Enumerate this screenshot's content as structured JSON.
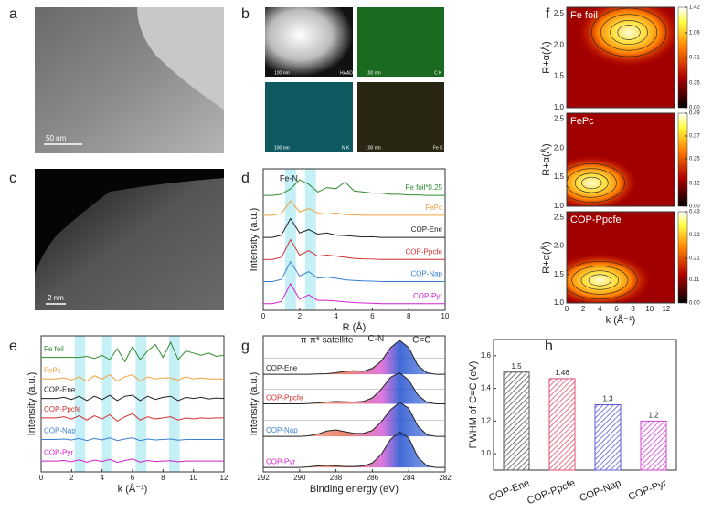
{
  "images": [
    {
      "panel": "a",
      "scale_bar": "50 nm"
    },
    {
      "panel": "b",
      "tiles": [
        "HAADF",
        "C K",
        "N K",
        "Fe K"
      ],
      "scale_bar": "100 nm"
    },
    {
      "panel": "c",
      "scale_bar": "2 nm"
    }
  ],
  "chart_data": [
    {
      "type": "line",
      "panel": "d",
      "xlabel": "R (Å)",
      "ylabel": "Intensity (a.u.)",
      "annotation": "Fe-N",
      "x": [
        0,
        0.5,
        1,
        1.5,
        2,
        2.5,
        3,
        3.5,
        4,
        4.5,
        5,
        5.5,
        6,
        6.5,
        7,
        7.5,
        8,
        8.5,
        9,
        9.5,
        10
      ],
      "xlim": [
        0,
        10
      ],
      "xticks": [
        0,
        2,
        4,
        6,
        8,
        10
      ],
      "ylim": [
        0,
        6.4
      ],
      "series": [
        {
          "name": "Fe foil*0.25",
          "color": "#2e8b2e",
          "values": [
            5.2,
            5.2,
            5.25,
            5.5,
            5.9,
            5.7,
            5.35,
            5.55,
            5.5,
            5.8,
            5.4,
            5.35,
            5.3,
            5.3,
            5.25,
            5.25,
            5.22,
            5.22,
            5.2,
            5.2,
            5.2
          ]
        },
        {
          "name": "FePc",
          "color": "#f0a040",
          "values": [
            4.3,
            4.3,
            4.38,
            4.95,
            4.45,
            4.6,
            4.4,
            4.35,
            4.4,
            4.33,
            4.32,
            4.3,
            4.3,
            4.3,
            4.3,
            4.3,
            4.3,
            4.3,
            4.3,
            4.3,
            4.3
          ]
        },
        {
          "name": "COP-Ene",
          "color": "#222222",
          "values": [
            3.3,
            3.3,
            3.4,
            4.15,
            3.5,
            3.65,
            3.45,
            3.5,
            3.4,
            3.38,
            3.35,
            3.32,
            3.33,
            3.3,
            3.3,
            3.3,
            3.3,
            3.3,
            3.3,
            3.3,
            3.3
          ]
        },
        {
          "name": "COP-Ppcfe",
          "color": "#d03030",
          "values": [
            2.3,
            2.3,
            2.4,
            3.2,
            2.5,
            2.7,
            2.45,
            2.5,
            2.45,
            2.4,
            2.35,
            2.33,
            2.32,
            2.3,
            2.3,
            2.3,
            2.3,
            2.3,
            2.3,
            2.3,
            2.3
          ]
        },
        {
          "name": "COP-Nap",
          "color": "#3a7fd0",
          "values": [
            1.3,
            1.3,
            1.4,
            2.2,
            1.55,
            1.75,
            1.45,
            1.5,
            1.45,
            1.38,
            1.35,
            1.33,
            1.32,
            1.3,
            1.3,
            1.3,
            1.3,
            1.3,
            1.3,
            1.3,
            1.3
          ]
        },
        {
          "name": "COP-Pyr",
          "color": "#d020d0",
          "values": [
            0.3,
            0.3,
            0.4,
            1.2,
            0.5,
            0.7,
            0.45,
            0.45,
            0.42,
            0.38,
            0.35,
            0.33,
            0.32,
            0.3,
            0.3,
            0.3,
            0.3,
            0.3,
            0.3,
            0.3,
            0.3
          ]
        }
      ]
    },
    {
      "type": "line",
      "panel": "e",
      "xlabel": "k (Å⁻¹)",
      "ylabel": "Intensity (a.u.)",
      "x": [
        0,
        0.5,
        1,
        1.5,
        2,
        2.5,
        3,
        3.5,
        4,
        4.5,
        5,
        5.5,
        6,
        6.5,
        7,
        7.5,
        8,
        8.5,
        9,
        9.5,
        10,
        10.5,
        11,
        11.5,
        12
      ],
      "xlim": [
        0,
        12
      ],
      "xticks": [
        0,
        2,
        4,
        6,
        8,
        10,
        12
      ],
      "ylim": [
        0,
        6.3
      ],
      "series": [
        {
          "name": "Fe foil",
          "color": "#2e8b2e",
          "values": [
            5.3,
            5.3,
            5.3,
            5.3,
            5.3,
            5.3,
            5.35,
            5.25,
            5.4,
            5.2,
            5.7,
            5.1,
            5.8,
            5.2,
            5.6,
            5.9,
            5.3,
            6.0,
            5.2,
            5.6,
            5.5,
            5.4,
            5.5,
            5.35,
            5.4
          ]
        },
        {
          "name": "FePc",
          "color": "#f0a040",
          "values": [
            4.3,
            4.3,
            4.3,
            4.35,
            4.25,
            4.4,
            4.2,
            4.45,
            4.3,
            4.5,
            4.2,
            4.4,
            4.5,
            4.2,
            4.4,
            4.3,
            4.35,
            4.35,
            4.25,
            4.4,
            4.3,
            4.35,
            4.3,
            4.3,
            4.3
          ]
        },
        {
          "name": "COP-Ene",
          "color": "#222222",
          "values": [
            3.4,
            3.4,
            3.4,
            3.45,
            3.35,
            3.5,
            3.3,
            3.5,
            3.35,
            3.55,
            3.3,
            3.5,
            3.55,
            3.3,
            3.5,
            3.35,
            3.45,
            3.5,
            3.3,
            3.45,
            3.4,
            3.45,
            3.38,
            3.42,
            3.4
          ]
        },
        {
          "name": "COP-Ppcfe",
          "color": "#d03030",
          "values": [
            2.5,
            2.5,
            2.5,
            2.55,
            2.45,
            2.6,
            2.4,
            2.6,
            2.45,
            2.65,
            2.35,
            2.55,
            2.7,
            2.4,
            2.55,
            2.45,
            2.5,
            2.55,
            2.4,
            2.5,
            2.45,
            2.5,
            2.48,
            2.5,
            2.5
          ]
        },
        {
          "name": "COP-Nap",
          "color": "#3a7fd0",
          "values": [
            1.5,
            1.5,
            1.5,
            1.52,
            1.48,
            1.55,
            1.45,
            1.55,
            1.48,
            1.58,
            1.45,
            1.52,
            1.58,
            1.45,
            1.52,
            1.48,
            1.5,
            1.52,
            1.47,
            1.5,
            1.5,
            1.5,
            1.5,
            1.5,
            1.5
          ]
        },
        {
          "name": "COP-Pyr",
          "color": "#d020d0",
          "values": [
            0.5,
            0.5,
            0.5,
            0.53,
            0.47,
            0.56,
            0.45,
            0.55,
            0.48,
            0.58,
            0.44,
            0.53,
            0.6,
            0.45,
            0.53,
            0.48,
            0.5,
            0.52,
            0.47,
            0.5,
            0.5,
            0.5,
            0.5,
            0.5,
            0.5
          ]
        }
      ]
    },
    {
      "type": "line",
      "panel": "g",
      "xlabel": "Binding energy (eV)",
      "ylabel": "Intensity (a.u.)",
      "annotations": [
        "π-π* satellite",
        "C-N",
        "C=C"
      ],
      "x": [
        292,
        291.5,
        291,
        290.5,
        290,
        289.5,
        289,
        288.5,
        288,
        287.5,
        287,
        286.5,
        286,
        285.5,
        285,
        284.5,
        284,
        283.5,
        283,
        282.5,
        282
      ],
      "xlim": [
        292,
        282
      ],
      "xticks": [
        292,
        290,
        288,
        286,
        284,
        282
      ],
      "ylim": [
        0,
        4.6
      ],
      "series": [
        {
          "name": "COP-Ene",
          "color": "#222222",
          "values": [
            3.3,
            3.3,
            3.3,
            3.3,
            3.3,
            3.3,
            3.31,
            3.32,
            3.35,
            3.4,
            3.42,
            3.4,
            3.5,
            3.75,
            4.2,
            4.45,
            4.2,
            3.6,
            3.35,
            3.3,
            3.3
          ]
        },
        {
          "name": "COP-Ppcfe",
          "color": "#222222",
          "values": [
            2.3,
            2.3,
            2.3,
            2.3,
            2.3,
            2.31,
            2.33,
            2.36,
            2.38,
            2.37,
            2.36,
            2.38,
            2.5,
            2.8,
            3.2,
            3.35,
            3.1,
            2.6,
            2.35,
            2.3,
            2.3
          ]
        },
        {
          "name": "COP-Nap",
          "color": "#222222",
          "values": [
            1.2,
            1.2,
            1.2,
            1.2,
            1.2,
            1.22,
            1.28,
            1.38,
            1.42,
            1.36,
            1.3,
            1.3,
            1.4,
            1.7,
            2.1,
            2.35,
            2.15,
            1.55,
            1.25,
            1.2,
            1.2
          ]
        },
        {
          "name": "COP-Pyr",
          "color": "#222222",
          "values": [
            0.15,
            0.15,
            0.15,
            0.15,
            0.15,
            0.17,
            0.2,
            0.22,
            0.2,
            0.18,
            0.18,
            0.2,
            0.3,
            0.6,
            1.1,
            1.35,
            1.15,
            0.5,
            0.2,
            0.15,
            0.15
          ]
        }
      ]
    },
    {
      "type": "bar",
      "panel": "h",
      "ylabel": "FWHM of C=C (eV)",
      "categories": [
        "COP-Ene",
        "COP-Ppcfe",
        "COP-Nap",
        "COP-Pyr"
      ],
      "values": [
        1.5,
        1.46,
        1.3,
        1.2
      ],
      "colors": [
        "#555555",
        "#e05070",
        "#5a5ad8",
        "#d040d0"
      ],
      "ylim": [
        0.9,
        1.7
      ],
      "yticks": [
        {
          "value": 1.0,
          "label": "1.0"
        },
        1.2,
        1.4,
        1.6
      ]
    },
    {
      "type": "contour",
      "panel": "f",
      "title": "Fe foil",
      "ylabel": "R+α(Å)",
      "xlim": [
        0,
        13
      ],
      "ylim": [
        1,
        2.6
      ],
      "yticks": [
        {
          "value": 1.0,
          "label": "1.0"
        },
        1.5,
        {
          "value": 2.0,
          "label": "2.0"
        },
        2.5
      ],
      "colorbar_lim": [
        0,
        1.42
      ],
      "colorbar_ticks": [
        {
          "value": 0,
          "label": "0.00"
        },
        0.35,
        0.71,
        1.06,
        1.42
      ]
    },
    {
      "type": "contour",
      "title": "FePc",
      "ylabel": "R+α(Å)",
      "xlim": [
        0,
        13
      ],
      "ylim": [
        1,
        2.6
      ],
      "yticks": [
        {
          "value": 1.0,
          "label": "1.0"
        },
        1.5,
        {
          "value": 2.0,
          "label": "2.0"
        },
        2.5
      ],
      "colorbar_lim": [
        0,
        0.49
      ],
      "colorbar_ticks": [
        {
          "value": 0,
          "label": "0.00"
        },
        0.12,
        0.25,
        0.37,
        0.49
      ]
    },
    {
      "type": "contour",
      "title": "COP-Ppcfe",
      "ylabel": "R+α(Å)",
      "xlabel": "k (Å⁻¹)",
      "xlim": [
        0,
        13
      ],
      "xticks": [
        0,
        2,
        4,
        6,
        8,
        10,
        12
      ],
      "ylim": [
        1,
        2.6
      ],
      "yticks": [
        {
          "value": 1.0,
          "label": "1.0"
        },
        1.5,
        {
          "value": 2.0,
          "label": "2.0"
        },
        2.5
      ],
      "colorbar_lim": [
        0,
        0.43
      ],
      "colorbar_ticks": [
        {
          "value": 0,
          "label": "0.00"
        },
        0.11,
        0.21,
        0.32,
        0.43
      ]
    }
  ]
}
